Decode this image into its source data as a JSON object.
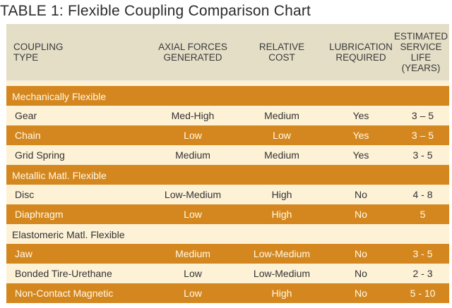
{
  "title": "TABLE 1: Flexible Coupling Comparison Chart",
  "headers": [
    "COUPLING\nTYPE",
    "AXIAL FORCES\nGENERATED",
    "RELATIVE\nCOST",
    "LUBRICATION\nREQUIRED",
    "ESTIMATED\nSERVICE LIFE\n(YEARS)"
  ],
  "rows": [
    {
      "kind": "group",
      "style": "orange",
      "cells": [
        "Mechanically Flexible",
        "",
        "",
        "",
        ""
      ]
    },
    {
      "kind": "item",
      "style": "cream",
      "cells": [
        "Gear",
        "Med-High",
        "Medium",
        "Yes",
        "3 – 5"
      ]
    },
    {
      "kind": "item",
      "style": "orange",
      "cells": [
        "Chain",
        "Low",
        "Low",
        "Yes",
        "3 – 5"
      ]
    },
    {
      "kind": "item",
      "style": "cream",
      "cells": [
        "Grid Spring",
        "Medium",
        "Medium",
        "Yes",
        "3 - 5"
      ]
    },
    {
      "kind": "group",
      "style": "orange",
      "cells": [
        "Metallic Matl. Flexible",
        "",
        "",
        "",
        ""
      ]
    },
    {
      "kind": "item",
      "style": "cream",
      "cells": [
        "Disc",
        "Low-Medium",
        "High",
        "No",
        "4 - 8"
      ]
    },
    {
      "kind": "item",
      "style": "orange",
      "cells": [
        "Diaphragm",
        "Low",
        "High",
        "No",
        "5"
      ]
    },
    {
      "kind": "group",
      "style": "cream",
      "cells": [
        "Elastomeric Matl. Flexible",
        "",
        "",
        "",
        ""
      ]
    },
    {
      "kind": "item",
      "style": "orange",
      "cells": [
        "Jaw",
        "Medium",
        "Low-Medium",
        "No",
        "3 - 5"
      ]
    },
    {
      "kind": "item",
      "style": "cream",
      "cells": [
        "Bonded Tire-Urethane",
        "Low",
        "Low-Medium",
        "No",
        "2 - 3"
      ]
    },
    {
      "kind": "item",
      "style": "orange",
      "cells": [
        "Non-Contact Magnetic",
        "Low",
        "High",
        "No",
        "5 - 10"
      ]
    }
  ],
  "colors": {
    "header_bg": "#e4dec7",
    "orange_row": "#d5871f",
    "cream_row": "#fdf1d6"
  }
}
